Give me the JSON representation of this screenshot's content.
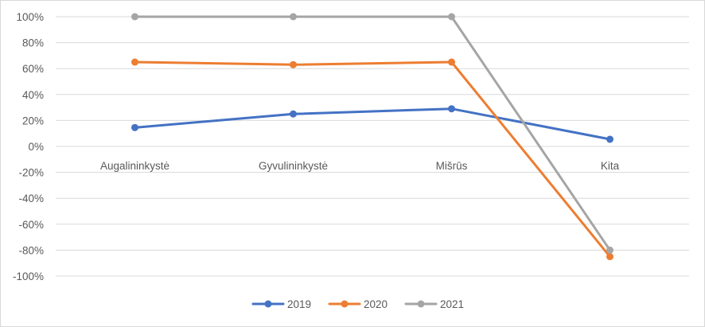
{
  "chart_data": {
    "type": "line",
    "categories": [
      "Augalininkystė",
      "Gyvulininkystė",
      "Mišrūs",
      "Kita"
    ],
    "series": [
      {
        "name": "2019",
        "color": "#4472c4",
        "values": [
          14.5,
          25,
          29,
          5.5
        ]
      },
      {
        "name": "2020",
        "color": "#ed7d31",
        "values": [
          65,
          63,
          65,
          -85
        ]
      },
      {
        "name": "2021",
        "color": "#a5a5a5",
        "values": [
          100,
          100,
          100,
          -80
        ]
      }
    ],
    "y_ticks": [
      "100%",
      "80%",
      "60%",
      "40%",
      "20%",
      "0%",
      "-20%",
      "-40%",
      "-60%",
      "-80%",
      "-100%"
    ],
    "ylim": [
      -100,
      100
    ],
    "y_unit": "%",
    "grid": true,
    "legend_position": "bottom",
    "title": "",
    "xlabel": "",
    "ylabel": ""
  }
}
